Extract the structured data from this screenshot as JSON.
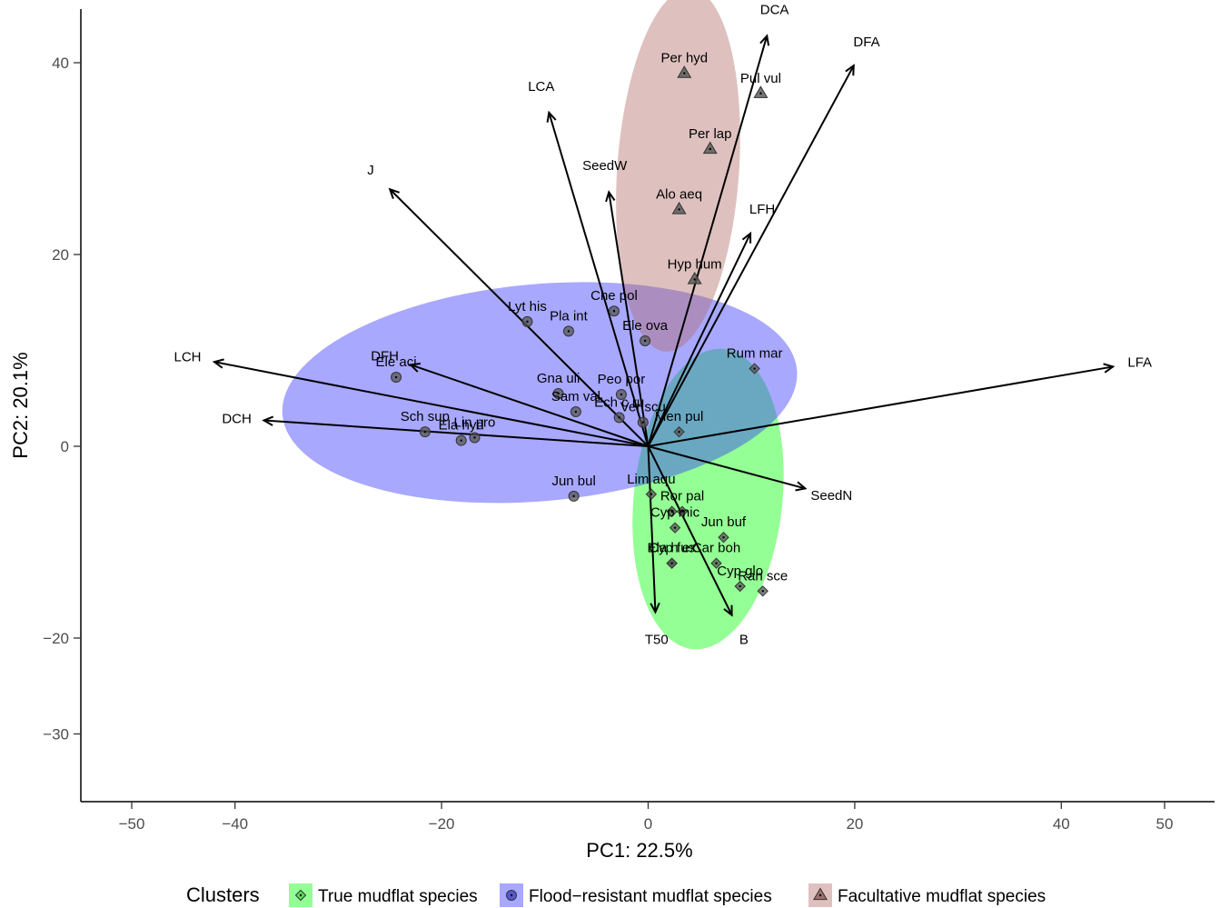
{
  "chart_data": {
    "type": "scatter",
    "subtype": "pca-biplot",
    "xlabel": "PC1: 22.5%",
    "ylabel": "PC2: 20.1%",
    "xlim": [
      -55,
      55
    ],
    "ylim": [
      -33,
      49
    ],
    "xticks": [
      -50,
      -40,
      -20,
      0,
      20,
      40,
      50
    ],
    "yticks": [
      -30,
      -20,
      0,
      20,
      40
    ],
    "grid": false,
    "legend_position": "bottom",
    "legend_title": "Clusters",
    "series": [
      {
        "name": "True mudflat species",
        "marker": "diamond",
        "color": "#4bd04b",
        "fill_color": "#00ff00",
        "ellipse": {
          "cx": 5.8,
          "cy": -5.5,
          "rx": 14.6,
          "ry": 7.2,
          "angle_deg": 84
        },
        "points": [
          {
            "label": "Lim aqu",
            "x": 0.3,
            "y": -5.0
          },
          {
            "label": "Ror pal",
            "x": 3.3,
            "y": -6.8
          },
          {
            "label": "",
            "x": 2.3,
            "y": -6.8
          },
          {
            "label": "Jun buf",
            "x": 7.3,
            "y": -9.5
          },
          {
            "label": "Cyp mic",
            "x": 2.6,
            "y": -8.5
          },
          {
            "label": "Cyp fus",
            "x": 2.3,
            "y": -12.2
          },
          {
            "label": "Car boh",
            "x": 6.6,
            "y": -12.2
          },
          {
            "label": "Ela h ex",
            "x": 2.3,
            "y": -12.2
          },
          {
            "label": "Cyp glo",
            "x": 8.9,
            "y": -14.6
          },
          {
            "label": "Ran sce",
            "x": 11.1,
            "y": -15.1
          },
          {
            "label": "Men pul",
            "x": 3.0,
            "y": 1.5
          },
          {
            "label": "Rum mar",
            "x": 10.3,
            "y": 8.1
          }
        ]
      },
      {
        "name": "Flood−resistant  mudflat species",
        "marker": "circle",
        "color": "#3d3dbd",
        "fill_color": "#2f2fff",
        "ellipse": {
          "cx": -10.5,
          "cy": 5.6,
          "rx": 25.0,
          "ry": 10.5,
          "angle_deg": 5
        },
        "points": [
          {
            "label": "Lyt his",
            "x": -11.7,
            "y": 13.0
          },
          {
            "label": "Pla int",
            "x": -7.7,
            "y": 12.0
          },
          {
            "label": "Che pol",
            "x": -3.3,
            "y": 14.1
          },
          {
            "label": "Ele ova",
            "x": -0.3,
            "y": 11.0
          },
          {
            "label": "Ele aci",
            "x": -24.4,
            "y": 7.2
          },
          {
            "label": "Gna uli",
            "x": -8.7,
            "y": 5.5
          },
          {
            "label": "Peo por",
            "x": -2.6,
            "y": 5.4
          },
          {
            "label": "Sam val",
            "x": -7.0,
            "y": 3.6
          },
          {
            "label": "Ech c ru",
            "x": -2.8,
            "y": 3.0
          },
          {
            "label": "Sch sup",
            "x": -21.6,
            "y": 1.5
          },
          {
            "label": "Lin pro",
            "x": -16.8,
            "y": 0.9
          },
          {
            "label": "Ela hyd",
            "x": -18.1,
            "y": 0.6
          },
          {
            "label": "Ver scu",
            "x": -0.5,
            "y": 2.5
          },
          {
            "label": "Jun bul",
            "x": -7.2,
            "y": -5.2
          }
        ]
      },
      {
        "name": "Facultative  mudflat species",
        "marker": "triangle",
        "color": "#8a5a58",
        "fill_color": "#b06b66",
        "ellipse": {
          "cx": 2.9,
          "cy": 28.8,
          "rx": 17.6,
          "ry": 5.9,
          "angle_deg": 86
        },
        "points": [
          {
            "label": "Per hyd",
            "x": 3.5,
            "y": 38.9
          },
          {
            "label": "Pul vul",
            "x": 10.9,
            "y": 36.8
          },
          {
            "label": "Per lap",
            "x": 6.0,
            "y": 31.0
          },
          {
            "label": "Alo aeq",
            "x": 3.0,
            "y": 24.7
          },
          {
            "label": "Hyp hum",
            "x": 4.5,
            "y": 17.4
          }
        ]
      }
    ],
    "loadings": [
      {
        "label": "DCA",
        "x": 11.5,
        "y": 42.8
      },
      {
        "label": "DFA",
        "x": 19.9,
        "y": 39.7
      },
      {
        "label": "LCA",
        "x": -9.6,
        "y": 34.8
      },
      {
        "label": "J",
        "x": -25.0,
        "y": 26.8
      },
      {
        "label": "SeedW",
        "x": -3.8,
        "y": 26.5
      },
      {
        "label": "LFH",
        "x": 9.9,
        "y": 22.2
      },
      {
        "label": "LCH",
        "x": -42.0,
        "y": 8.8
      },
      {
        "label": "DFH",
        "x": -23.0,
        "y": 8.5
      },
      {
        "label": "DCH",
        "x": -37.2,
        "y": 2.7
      },
      {
        "label": "LFA",
        "x": 45.0,
        "y": 8.3
      },
      {
        "label": "SeedN",
        "x": 15.2,
        "y": -4.4
      },
      {
        "label": "T50",
        "x": 0.7,
        "y": -17.3
      },
      {
        "label": "B",
        "x": 8.1,
        "y": -17.6
      }
    ]
  }
}
